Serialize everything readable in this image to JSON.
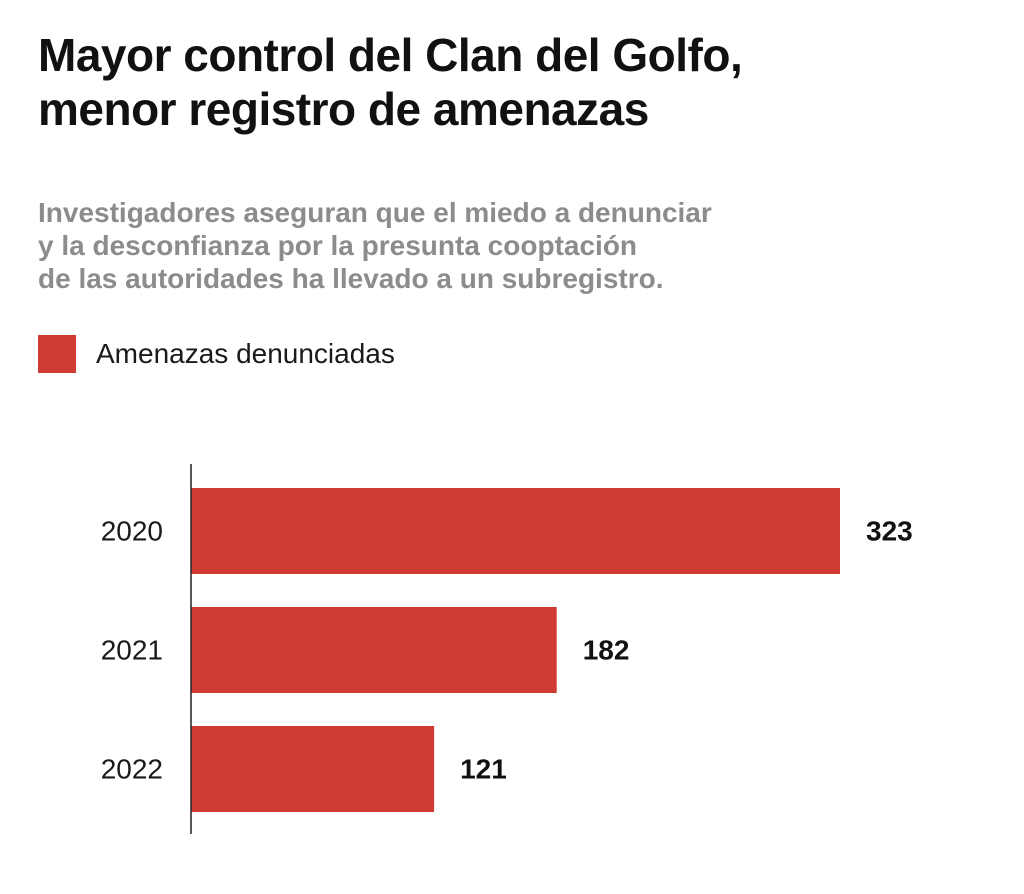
{
  "header": {
    "title_line1": "Mayor control del Clan del Golfo,",
    "title_line2": "menor registro de amenazas",
    "subtitle_line1": "Investigadores aseguran que el miedo a denunciar",
    "subtitle_line2": "y la desconfianza por la presunta cooptación",
    "subtitle_line3": "de las autoridades ha llevado a un subregistro."
  },
  "colors": {
    "bar": "#cf3a32",
    "axis": "#222222",
    "title": "#111111",
    "subtitle": "#8c8c8c"
  },
  "chart_data": {
    "type": "bar",
    "orientation": "horizontal",
    "title": "Mayor control del Clan del Golfo, menor registro de amenazas",
    "subtitle": "Investigadores aseguran que el miedo a denunciar y la desconfianza por la presunta cooptación de las autoridades ha llevado a un subregistro.",
    "categories": [
      "2020",
      "2021",
      "2022"
    ],
    "series": [
      {
        "name": "Amenazas denunciadas",
        "values": [
          323,
          182,
          121
        ]
      }
    ],
    "xlabel": "",
    "ylabel": "",
    "xlim": [
      0,
      323
    ],
    "grid": false,
    "legend": "top-left",
    "data_labels": true
  }
}
